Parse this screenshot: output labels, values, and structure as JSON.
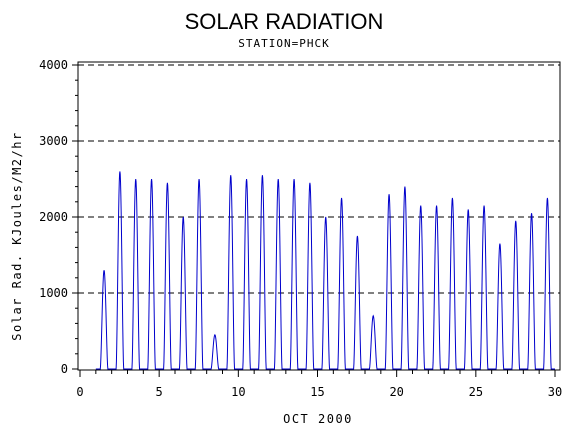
{
  "chart_data": {
    "type": "line",
    "title": "SOLAR RADIATION",
    "subtitle": "STATION=PHCK",
    "xlabel": "OCT 2000",
    "ylabel": "Solar Rad. KJoules/M2/hr",
    "xlim": [
      0,
      30
    ],
    "ylim": [
      0,
      4000
    ],
    "x_ticks": [
      "0",
      "5",
      "10",
      "15",
      "20",
      "25",
      "30"
    ],
    "y_ticks": [
      "0",
      "1000",
      "2000",
      "3000",
      "4000"
    ],
    "grid": "horizontal dashed",
    "line_color": "#0000cc",
    "daily_peaks": [
      {
        "day": 1,
        "peak": 1300
      },
      {
        "day": 2,
        "peak": 2600
      },
      {
        "day": 3,
        "peak": 2500
      },
      {
        "day": 4,
        "peak": 2500
      },
      {
        "day": 5,
        "peak": 2450
      },
      {
        "day": 6,
        "peak": 2000
      },
      {
        "day": 7,
        "peak": 2500
      },
      {
        "day": 8,
        "peak": 450
      },
      {
        "day": 9,
        "peak": 2550
      },
      {
        "day": 10,
        "peak": 2500
      },
      {
        "day": 11,
        "peak": 2550
      },
      {
        "day": 12,
        "peak": 2500
      },
      {
        "day": 13,
        "peak": 2500
      },
      {
        "day": 14,
        "peak": 2450
      },
      {
        "day": 15,
        "peak": 2000
      },
      {
        "day": 16,
        "peak": 2250
      },
      {
        "day": 17,
        "peak": 1750
      },
      {
        "day": 18,
        "peak": 700
      },
      {
        "day": 19,
        "peak": 2300
      },
      {
        "day": 20,
        "peak": 2400
      },
      {
        "day": 21,
        "peak": 2150
      },
      {
        "day": 22,
        "peak": 2150
      },
      {
        "day": 23,
        "peak": 2250
      },
      {
        "day": 24,
        "peak": 2100
      },
      {
        "day": 25,
        "peak": 2150
      },
      {
        "day": 26,
        "peak": 1650
      },
      {
        "day": 27,
        "peak": 1950
      },
      {
        "day": 28,
        "peak": 2050
      },
      {
        "day": 29,
        "peak": 2250
      }
    ]
  }
}
